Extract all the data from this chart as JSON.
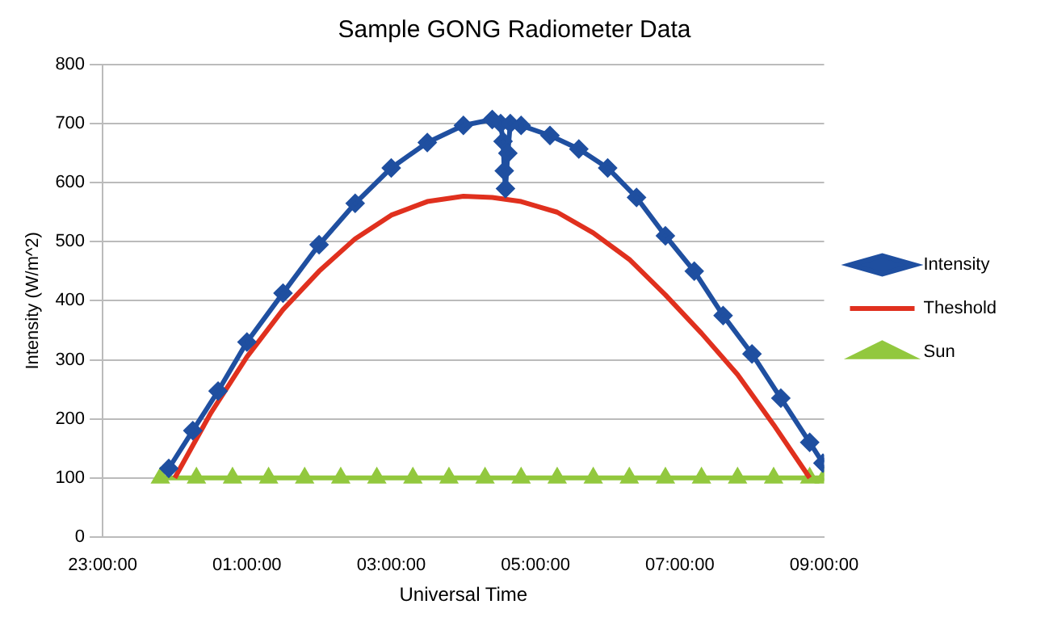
{
  "chart_data": {
    "type": "line",
    "title": "Sample GONG Radiometer Data",
    "xlabel": "Universal Time",
    "ylabel": "Intensity (W/m^2)",
    "xlim": [
      "2000-01-01T23:00",
      "2000-01-02T09:00"
    ],
    "xticks": [
      {
        "value": "2000-01-01T23:00",
        "label": "23:00:00"
      },
      {
        "value": "2000-01-02T01:00",
        "label": "01:00:00"
      },
      {
        "value": "2000-01-02T03:00",
        "label": "03:00:00"
      },
      {
        "value": "2000-01-02T05:00",
        "label": "05:00:00"
      },
      {
        "value": "2000-01-02T07:00",
        "label": "07:00:00"
      },
      {
        "value": "2000-01-02T09:00",
        "label": "09:00:00"
      }
    ],
    "ylim": [
      0,
      800
    ],
    "yticks": [
      0,
      100,
      200,
      300,
      400,
      500,
      600,
      700,
      800
    ],
    "grid": "y",
    "legend": "right",
    "series": [
      {
        "name": "Intensity",
        "color": "#1f4fa0",
        "marker": "diamond",
        "x": [
          "2000-01-01T23:55",
          "2000-01-02T00:15",
          "2000-01-02T00:36",
          "2000-01-02T01:00",
          "2000-01-02T01:30",
          "2000-01-02T02:00",
          "2000-01-02T02:30",
          "2000-01-02T03:00",
          "2000-01-02T03:30",
          "2000-01-02T04:00",
          "2000-01-02T04:24",
          "2000-01-02T04:31",
          "2000-01-02T04:33",
          "2000-01-02T04:34",
          "2000-01-02T04:35",
          "2000-01-02T04:37",
          "2000-01-02T04:39",
          "2000-01-02T04:48",
          "2000-01-02T05:12",
          "2000-01-02T05:36",
          "2000-01-02T06:00",
          "2000-01-02T06:24",
          "2000-01-02T06:48",
          "2000-01-02T07:12",
          "2000-01-02T07:36",
          "2000-01-02T08:00",
          "2000-01-02T08:24",
          "2000-01-02T08:48",
          "2000-01-02T08:59"
        ],
        "values": [
          116,
          180,
          247,
          330,
          413,
          495,
          565,
          625,
          668,
          697,
          707,
          700,
          670,
          620,
          590,
          650,
          700,
          697,
          680,
          657,
          625,
          575,
          510,
          450,
          375,
          310,
          235,
          160,
          125
        ]
      },
      {
        "name": "Theshold",
        "color": "#e0301e",
        "marker": "none",
        "x": [
          "2000-01-02T00:00",
          "2000-01-02T00:30",
          "2000-01-02T01:00",
          "2000-01-02T01:30",
          "2000-01-02T02:00",
          "2000-01-02T02:30",
          "2000-01-02T03:00",
          "2000-01-02T03:30",
          "2000-01-02T04:00",
          "2000-01-02T04:24",
          "2000-01-02T04:48",
          "2000-01-02T05:18",
          "2000-01-02T05:48",
          "2000-01-02T06:18",
          "2000-01-02T06:48",
          "2000-01-02T07:18",
          "2000-01-02T07:48",
          "2000-01-02T08:18",
          "2000-01-02T08:48"
        ],
        "values": [
          100,
          210,
          305,
          385,
          450,
          505,
          545,
          568,
          577,
          575,
          568,
          550,
          515,
          470,
          410,
          345,
          275,
          190,
          100
        ]
      },
      {
        "name": "Sun",
        "color": "#92c83e",
        "marker": "triangle",
        "x": [
          "2000-01-01T23:48",
          "2000-01-02T00:18",
          "2000-01-02T00:48",
          "2000-01-02T01:18",
          "2000-01-02T01:48",
          "2000-01-02T02:18",
          "2000-01-02T02:48",
          "2000-01-02T03:18",
          "2000-01-02T03:48",
          "2000-01-02T04:18",
          "2000-01-02T04:48",
          "2000-01-02T05:18",
          "2000-01-02T05:48",
          "2000-01-02T06:18",
          "2000-01-02T06:48",
          "2000-01-02T07:18",
          "2000-01-02T07:48",
          "2000-01-02T08:18",
          "2000-01-02T08:48",
          "2000-01-02T09:00"
        ],
        "values": [
          100,
          100,
          100,
          100,
          100,
          100,
          100,
          100,
          100,
          100,
          100,
          100,
          100,
          100,
          100,
          100,
          100,
          100,
          100,
          100
        ]
      }
    ]
  }
}
